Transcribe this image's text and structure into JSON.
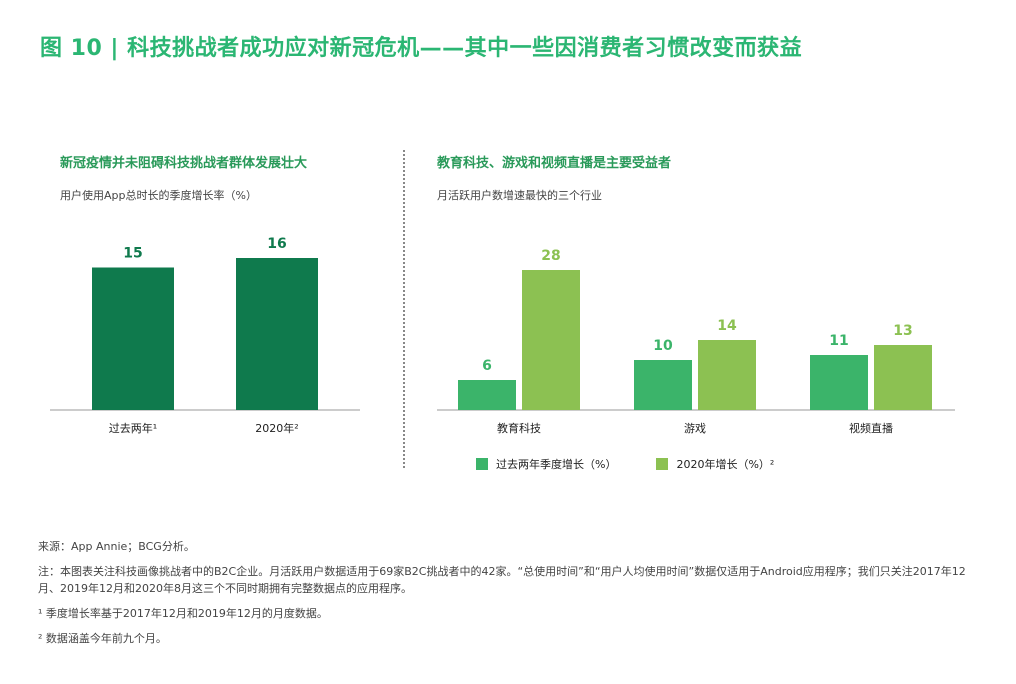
{
  "figure_title": "图 10 | 科技挑战者成功应对新冠危机——其中一些因消费者习惯改变而获益",
  "left_panel": {
    "title": "新冠疫情并未阻碍科技挑战者群体发展壮大",
    "subtitle": "用户使用App总时长的季度增长率（%）"
  },
  "right_panel": {
    "title": "教育科技、游戏和视频直播是主要受益者",
    "subtitle": "月活跃用户数增速最快的三个行业"
  },
  "legend": {
    "past": "过去两年季度增长（%）",
    "y2020": "2020年增长（%）²"
  },
  "notes": {
    "source": "来源：App Annie；BCG分析。",
    "note": "注：本图表关注科技画像挑战者中的B2C企业。月活跃用户数据适用于69家B2C挑战者中的42家。“总使用时间”和“用户人均使用时间”数据仅适用于Android应用程序；我们只关注2017年12月、2019年12月和2020年8月这三个不同时期拥有完整数据点的应用程序。",
    "fn1": "¹ 季度增长率基于2017年12月和2019年12月的月度数据。",
    "fn2": "² 数据涵盖今年前九个月。"
  },
  "colors": {
    "dark_green": "#0f7a4d",
    "mid_green": "#3bb46a",
    "light_green": "#8cc152",
    "title_green": "#2bb673"
  },
  "chart_data": [
    {
      "type": "bar",
      "categories": [
        "过去两年¹",
        "2020年²"
      ],
      "values": [
        15,
        16
      ],
      "ylim": [
        0,
        20
      ]
    },
    {
      "type": "bar",
      "categories": [
        "教育科技",
        "游戏",
        "视频直播"
      ],
      "series": [
        {
          "name": "过去两年季度增长（%）",
          "values": [
            6,
            10,
            11
          ]
        },
        {
          "name": "2020年增长（%）²",
          "values": [
            28,
            14,
            13
          ]
        }
      ],
      "ylim": [
        0,
        30
      ]
    }
  ]
}
